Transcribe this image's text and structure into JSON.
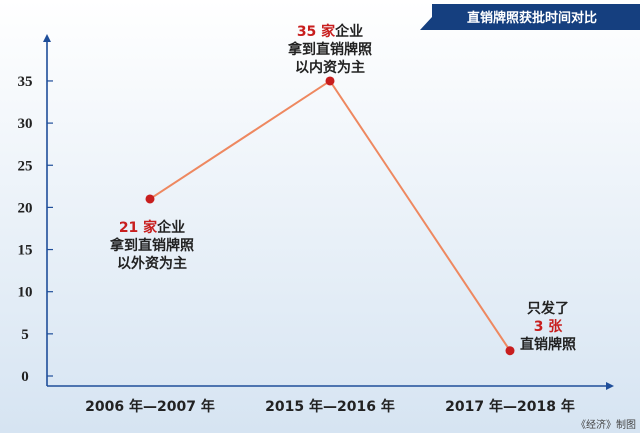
{
  "title": "直销牌照获批时间对比",
  "credit": "《经济》制图",
  "colors": {
    "background_top": "#ffffff",
    "background_bottom": "#d6e4f2",
    "axis": "#1f4e9a",
    "line": "#ee8860",
    "point": "#c81e1e",
    "highlight_text": "#c81e1e",
    "title_banner": "#153f7f"
  },
  "chart_data": {
    "type": "line",
    "title": "直销牌照获批时间对比",
    "xlabel": "",
    "ylabel": "",
    "categories": [
      "2006 年—2007 年",
      "2015 年—2016 年",
      "2017 年—2018 年"
    ],
    "series": [
      {
        "values": [
          21,
          35,
          3
        ]
      }
    ],
    "ylim": [
      0,
      40
    ],
    "yticks": [
      0,
      5,
      10,
      15,
      20,
      25,
      30,
      35
    ],
    "grid": false,
    "annotations": [
      {
        "highlight": "21 家",
        "lines": [
          "企业",
          "拿到直销牌照",
          "以外资为主"
        ]
      },
      {
        "highlight": "35 家",
        "lines": [
          "企业",
          "拿到直销牌照",
          "以内资为主"
        ]
      },
      {
        "pre": "只发了",
        "highlight": "3 张",
        "lines": [
          "直销牌照"
        ]
      }
    ]
  }
}
